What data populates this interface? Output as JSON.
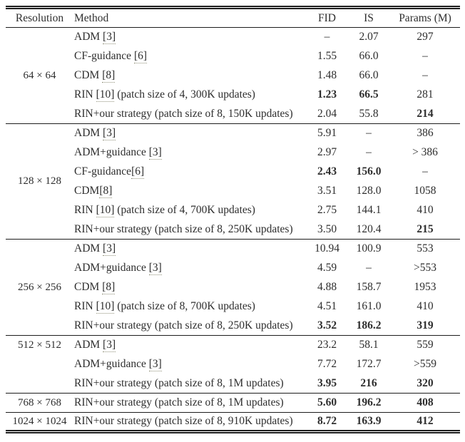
{
  "table": {
    "headers": {
      "resolution": "Resolution",
      "method": "Method",
      "fid": "FID",
      "is": "IS",
      "params": "Params (M)"
    },
    "groups": [
      {
        "resolution": "64 × 64",
        "rows": [
          {
            "method_pre": "ADM ",
            "cite": "[3]",
            "method_suf": "",
            "fid": "–",
            "is": "2.07",
            "params": "297",
            "bold": []
          },
          {
            "method_pre": "CF-guidance ",
            "cite": "[6]",
            "method_suf": "",
            "fid": "1.55",
            "is": "66.0",
            "params": "–",
            "bold": []
          },
          {
            "method_pre": "CDM ",
            "cite": "[8]",
            "method_suf": "",
            "fid": "1.48",
            "is": "66.0",
            "params": "–",
            "bold": []
          },
          {
            "method_pre": "RIN ",
            "cite": "[10]",
            "method_suf": " (patch size of 4, 300K updates)",
            "fid": "1.23",
            "is": "66.5",
            "params": "281",
            "bold": [
              "fid",
              "is"
            ]
          },
          {
            "method_pre": "RIN+our strategy (patch size of 8, 150K updates)",
            "cite": "",
            "method_suf": "",
            "fid": "2.04",
            "is": "55.8",
            "params": "214",
            "bold": [
              "params"
            ]
          }
        ]
      },
      {
        "resolution": "128 × 128",
        "rows": [
          {
            "method_pre": "ADM ",
            "cite": "[3]",
            "method_suf": "",
            "fid": "5.91",
            "is": "–",
            "params": "386",
            "bold": []
          },
          {
            "method_pre": "ADM+guidance ",
            "cite": "[3]",
            "method_suf": "",
            "fid": "2.97",
            "is": "–",
            "params": "> 386",
            "bold": []
          },
          {
            "method_pre": "CF-guidance",
            "cite": "[6]",
            "method_suf": "",
            "fid": "2.43",
            "is": "156.0",
            "params": "–",
            "bold": [
              "fid",
              "is"
            ]
          },
          {
            "method_pre": "CDM",
            "cite": "[8]",
            "method_suf": "",
            "fid": "3.51",
            "is": "128.0",
            "params": "1058",
            "bold": []
          },
          {
            "method_pre": "RIN ",
            "cite": "[10]",
            "method_suf": " (patch size of 4, 700K updates)",
            "fid": "2.75",
            "is": "144.1",
            "params": "410",
            "bold": []
          },
          {
            "method_pre": "RIN+our strategy (patch size of 8, 250K updates)",
            "cite": "",
            "method_suf": "",
            "fid": "3.50",
            "is": "120.4",
            "params": "215",
            "bold": [
              "params"
            ]
          }
        ]
      },
      {
        "resolution": "256 × 256",
        "rows": [
          {
            "method_pre": "ADM ",
            "cite": "[3]",
            "method_suf": "",
            "fid": "10.94",
            "is": "100.9",
            "params": "553",
            "bold": []
          },
          {
            "method_pre": "ADM+guidance ",
            "cite": "[3]",
            "method_suf": "",
            "fid": "4.59",
            "is": "–",
            "params": ">553",
            "bold": []
          },
          {
            "method_pre": "CDM ",
            "cite": "[8]",
            "method_suf": "",
            "fid": "4.88",
            "is": "158.7",
            "params": "1953",
            "bold": []
          },
          {
            "method_pre": "RIN ",
            "cite": "[10]",
            "method_suf": " (patch size of 8, 700K updates)",
            "fid": "4.51",
            "is": "161.0",
            "params": "410",
            "bold": []
          },
          {
            "method_pre": "RIN+our strategy (patch size of 8, 250K updates)",
            "cite": "",
            "method_suf": "",
            "fid": "3.52",
            "is": "186.2",
            "params": "319",
            "bold": [
              "fid",
              "is",
              "params"
            ]
          }
        ]
      },
      {
        "resolution": "512 × 512",
        "rows": [
          {
            "method_pre": "ADM ",
            "cite": "[3]",
            "method_suf": "",
            "fid": "23.2",
            "is": "58.1",
            "params": "559",
            "bold": []
          },
          {
            "method_pre": "ADM+guidance ",
            "cite": "[3]",
            "method_suf": "",
            "fid": "7.72",
            "is": "172.7",
            "params": ">559",
            "bold": []
          },
          {
            "method_pre": "RIN+our strategy (patch size of 8, 1M updates)",
            "cite": "",
            "method_suf": "",
            "fid": "3.95",
            "is": "216",
            "params": "320",
            "bold": [
              "fid",
              "is",
              "params"
            ]
          }
        ]
      },
      {
        "resolution": "768 × 768",
        "rows": [
          {
            "method_pre": "RIN+our strategy (patch size of 8, 1M updates)",
            "cite": "",
            "method_suf": "",
            "fid": "5.60",
            "is": "196.2",
            "params": "408",
            "bold": [
              "fid",
              "is",
              "params"
            ]
          }
        ]
      },
      {
        "resolution": "1024 × 1024",
        "rows": [
          {
            "method_pre": "RIN+our strategy (patch size of 8, 910K updates)",
            "cite": "",
            "method_suf": "",
            "fid": "8.72",
            "is": "163.9",
            "params": "412",
            "bold": [
              "fid",
              "is",
              "params"
            ]
          }
        ]
      }
    ]
  },
  "colors": {
    "text": "#2e2e2e",
    "rule": "#1d1d1d",
    "citation_dots": "#92927c"
  }
}
